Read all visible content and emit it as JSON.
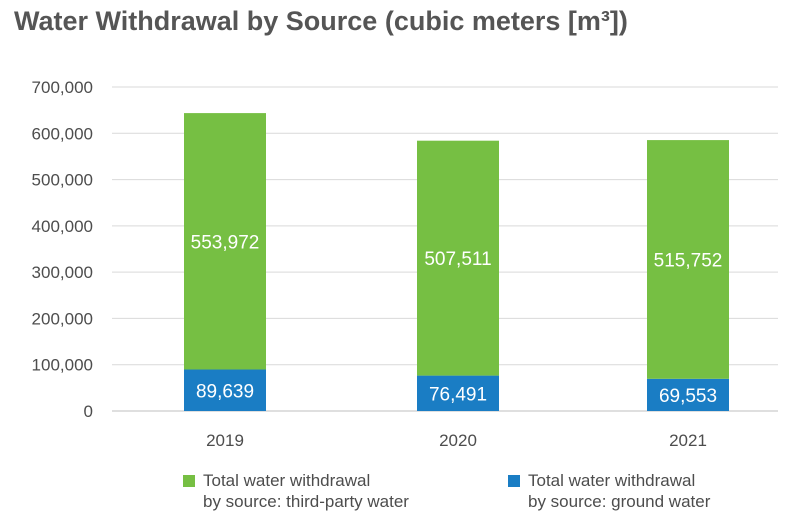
{
  "chart_data": {
    "type": "bar",
    "stacked": true,
    "title": "Water Withdrawal by Source (cubic meters [m³])",
    "categories": [
      "2019",
      "2020",
      "2021"
    ],
    "series": [
      {
        "name": "Total water withdrawal\nby source: ground water",
        "values": [
          89639,
          76491,
          69553
        ],
        "color": "#1a7dc4"
      },
      {
        "name": "Total water withdrawal\nby source: third-party water",
        "values": [
          553972,
          507511,
          515752
        ],
        "color": "#76bf43"
      }
    ],
    "value_labels": {
      "ground": [
        "89,639",
        "76,491",
        "69,553"
      ],
      "third_party": [
        "553,972",
        "507,511",
        "515,752"
      ]
    },
    "y_ticks": [
      "0",
      "100,000",
      "200,000",
      "300,000",
      "400,000",
      "500,000",
      "600,000",
      "700,000"
    ],
    "ylim": [
      0,
      700000
    ],
    "grid": true,
    "legend_position": "bottom"
  },
  "legend": [
    {
      "label": "Total water withdrawal\nby source: third-party water",
      "color": "#76bf43"
    },
    {
      "label": "Total water withdrawal\nby source: ground water",
      "color": "#1a7dc4"
    }
  ]
}
